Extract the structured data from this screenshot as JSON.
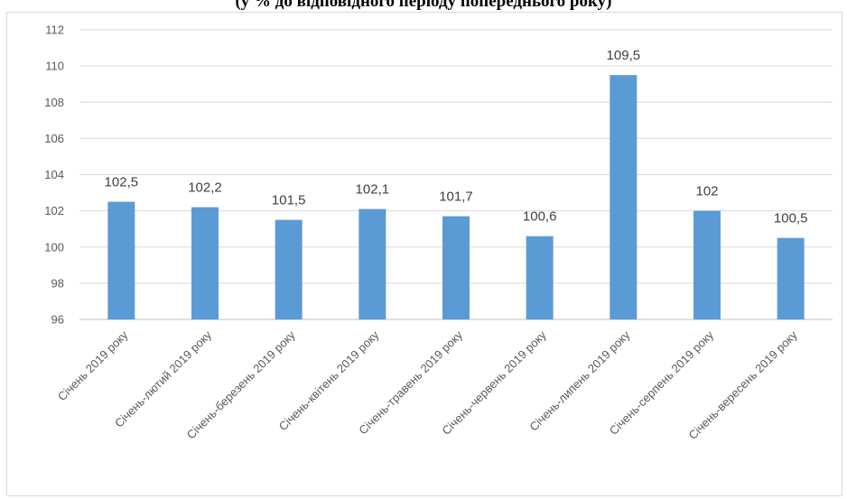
{
  "page": {
    "title": "(у % до відповідного періоду попереднього року)"
  },
  "chart_data": {
    "type": "bar",
    "title": "(у % до відповідного періоду попереднього року)",
    "xlabel": "",
    "ylabel": "",
    "ylim": [
      96,
      112
    ],
    "yticks": [
      96,
      98,
      100,
      102,
      104,
      106,
      108,
      110,
      112
    ],
    "grid": true,
    "legend": "none",
    "bar_color": "#5b9bd5",
    "categories": [
      "Січень 2019 року",
      "Січень-лютий 2019 року",
      "Січень-березень 2019 року",
      "Січень-квітень 2019 року",
      "Січень-травень 2019 року",
      "Січень-червень 2019 року",
      "Січень-липень 2019 року",
      "Січень-серпень 2019 року",
      "Січень-вересень 2019 року"
    ],
    "values": [
      102.5,
      102.2,
      101.5,
      102.1,
      101.7,
      100.6,
      109.5,
      102,
      100.5
    ],
    "value_labels": [
      "102,5",
      "102,2",
      "101,5",
      "102,1",
      "101,7",
      "100,6",
      "109,5",
      "102",
      "100,5"
    ]
  }
}
